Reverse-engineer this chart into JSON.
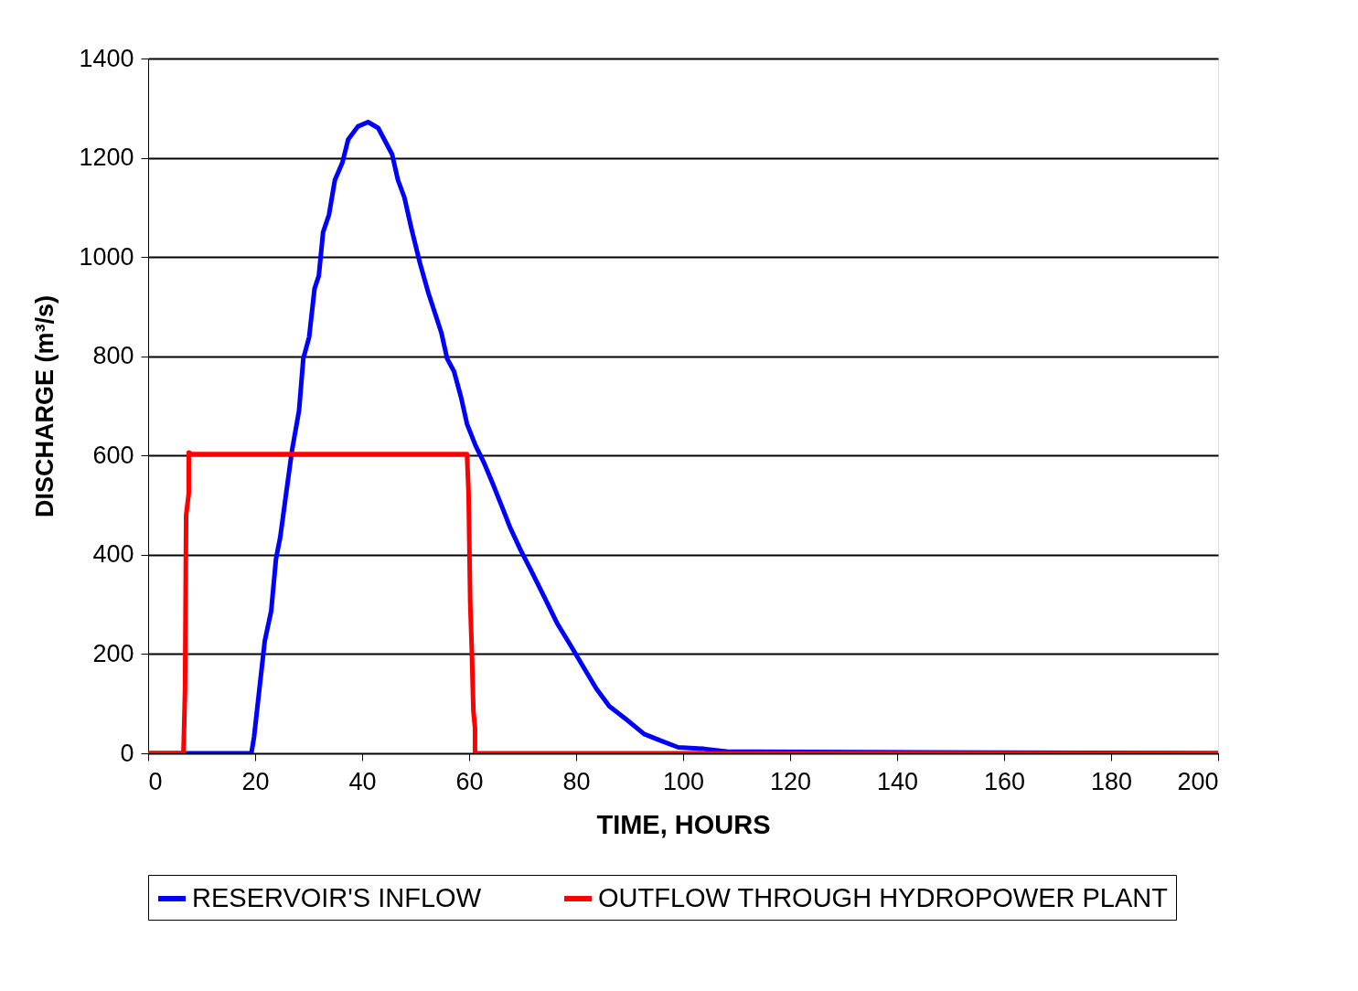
{
  "chart_data": {
    "type": "line",
    "xlabel": "TIME, HOURS",
    "ylabel": "DISCHARGE (m³/s)",
    "xlim": [
      0,
      200
    ],
    "xticks": [
      0,
      20,
      40,
      60,
      80,
      100,
      120,
      140,
      160,
      180,
      200
    ],
    "ylim": [
      0,
      1400
    ],
    "yticks": [
      0,
      200,
      400,
      600,
      800,
      1000,
      1200,
      1400
    ],
    "grid": "y",
    "legend": "bottom",
    "marker": "none",
    "line_style": "solid",
    "series": [
      {
        "name": "RESERVOIR'S  INFLOW",
        "color": "#0000ff",
        "x": [
          0,
          19.3,
          19.8,
          20.8,
          21.8,
          23,
          23.9,
          24.7,
          25.8,
          26.9,
          28.2,
          29,
          30.1,
          31.1,
          31.9,
          32.7,
          33.8,
          34.9,
          36.3,
          37.4,
          39.2,
          41.1,
          43,
          45.6,
          46.7,
          47.9,
          49.2,
          50.8,
          52.4,
          54.8,
          55.9,
          57.2,
          58.5,
          59.6,
          61.2,
          62.8,
          64.5,
          66.1,
          67.7,
          69.6,
          71.7,
          74.1,
          76.5,
          79,
          81.4,
          83.8,
          86.2,
          89.4,
          92.7,
          95.9,
          99.1,
          103.9,
          108.8,
          112.8,
          200
        ],
        "values": [
          0,
          0,
          33,
          130,
          226,
          287,
          392,
          436,
          524,
          611,
          690,
          795,
          839,
          936,
          962,
          1050,
          1085,
          1155,
          1190,
          1237,
          1263,
          1272,
          1260,
          1207,
          1155,
          1120,
          1058,
          988,
          927,
          848,
          795,
          769,
          717,
          664,
          620,
          585,
          541,
          498,
          454,
          410,
          366,
          314,
          261,
          217,
          173,
          130,
          95,
          68,
          39,
          25,
          12,
          9,
          3,
          3,
          0
        ]
      },
      {
        "name": "OUTFLOW THROUGH HYDROPOWER PLANT",
        "color": "#ff0000",
        "x": [
          0,
          6.6,
          6.8,
          6.9,
          7.1,
          7.6,
          7.6,
          8.1,
          59.6,
          59.9,
          60.2,
          60.5,
          60.8,
          61.1,
          61.1,
          200
        ],
        "values": [
          0,
          0,
          85,
          130,
          480,
          524,
          606,
          603,
          603,
          524,
          305,
          208,
          85,
          51,
          0,
          0
        ]
      }
    ]
  }
}
